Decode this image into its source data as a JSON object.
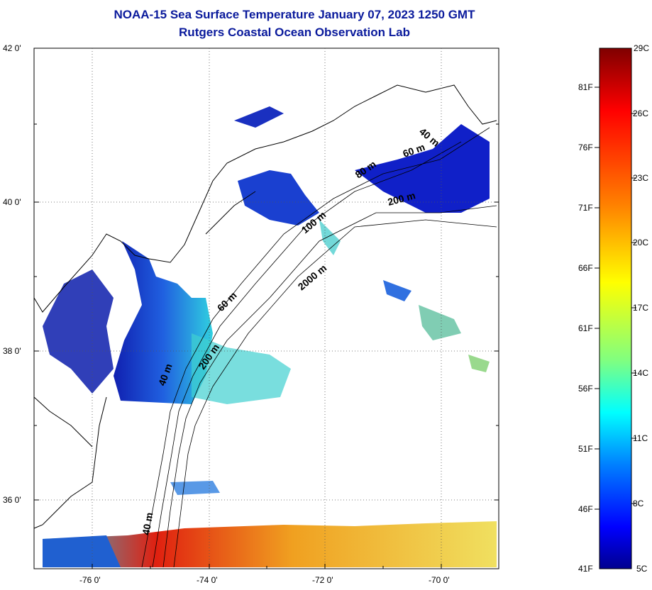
{
  "title_line1": "NOAA-15 Sea Surface Temperature January 07, 2023 1250 GMT",
  "title_line2": "Rutgers Coastal Ocean Observation Lab",
  "map": {
    "lat_labels": [
      "42 0'",
      "40 0'",
      "38 0'",
      "36 0'"
    ],
    "lon_labels": [
      "-76 0'",
      "-74 0'",
      "-72 0'",
      "-70 0'"
    ],
    "gridlines": "dotted",
    "depth_contour_labels": [
      "40 m",
      "60 m",
      "80 m",
      "100 m",
      "200 m",
      "2000 m",
      "60 m",
      "40 m",
      "200 m",
      "40 m"
    ]
  },
  "colorbar": {
    "top_label": "29C",
    "bottom_left_label": "41F",
    "bottom_right_label": "5C",
    "fahrenheit_labels": [
      "81F",
      "76F",
      "71F",
      "66F",
      "61F",
      "56F",
      "51F",
      "46F"
    ],
    "celsius_labels": [
      "26C",
      "23C",
      "20C",
      "17C",
      "14C",
      "11C",
      "8C"
    ],
    "colors": [
      "#7f0000",
      "#ff0000",
      "#ff8000",
      "#ffff00",
      "#80ff80",
      "#00ffff",
      "#0080ff",
      "#0000ff",
      "#00008f"
    ]
  }
}
